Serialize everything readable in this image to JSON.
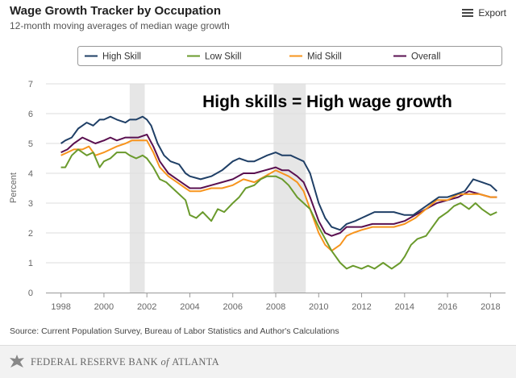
{
  "header": {
    "title": "Wage Growth Tracker by Occupation",
    "subtitle": "12-month moving averages of median wage growth",
    "export_label": "Export"
  },
  "footer": {
    "source": "Source: Current Population Survey, Bureau of Labor Statistics and Author's Calculations",
    "org_prefix": "FEDERAL RESERVE BANK",
    "org_of": " of ",
    "org_city": "ATLANTA"
  },
  "colors": {
    "high_skill": "#1f3f66",
    "low_skill": "#6a9a2c",
    "mid_skill": "#f7941d",
    "overall": "#5a1050",
    "recession": "#e6e6e6",
    "grid": "#dddddd",
    "axis": "#999999"
  },
  "chart_data": {
    "type": "line",
    "ylabel": "Percent",
    "xlabel": "",
    "xlim": [
      1997.3,
      2018.7
    ],
    "ylim": [
      0,
      7
    ],
    "x_ticks": [
      1998,
      2000,
      2002,
      2004,
      2006,
      2008,
      2010,
      2012,
      2014,
      2016,
      2018
    ],
    "y_ticks": [
      0,
      1,
      2,
      3,
      4,
      5,
      6,
      7
    ],
    "grid": "horizontal",
    "legend_position": "top",
    "annotation": "High skills = High wage growth",
    "recession_bands": [
      [
        2001.2,
        2001.9
      ],
      [
        2007.9,
        2009.4
      ]
    ],
    "series": [
      {
        "name": "High Skill",
        "color_key": "high_skill",
        "points": [
          [
            1998,
            5.0
          ],
          [
            1998.2,
            5.1
          ],
          [
            1998.5,
            5.2
          ],
          [
            1998.8,
            5.5
          ],
          [
            1999,
            5.6
          ],
          [
            1999.2,
            5.7
          ],
          [
            1999.5,
            5.6
          ],
          [
            1999.8,
            5.8
          ],
          [
            2000,
            5.8
          ],
          [
            2000.3,
            5.9
          ],
          [
            2000.6,
            5.8
          ],
          [
            2001,
            5.7
          ],
          [
            2001.2,
            5.8
          ],
          [
            2001.5,
            5.8
          ],
          [
            2001.8,
            5.9
          ],
          [
            2002,
            5.8
          ],
          [
            2002.2,
            5.6
          ],
          [
            2002.5,
            5.0
          ],
          [
            2002.8,
            4.6
          ],
          [
            2003.1,
            4.4
          ],
          [
            2003.5,
            4.3
          ],
          [
            2003.8,
            4.0
          ],
          [
            2004,
            3.9
          ],
          [
            2004.5,
            3.8
          ],
          [
            2005,
            3.9
          ],
          [
            2005.5,
            4.1
          ],
          [
            2006,
            4.4
          ],
          [
            2006.3,
            4.5
          ],
          [
            2006.7,
            4.4
          ],
          [
            2007,
            4.4
          ],
          [
            2007.3,
            4.5
          ],
          [
            2007.6,
            4.6
          ],
          [
            2008,
            4.7
          ],
          [
            2008.3,
            4.6
          ],
          [
            2008.7,
            4.6
          ],
          [
            2009,
            4.5
          ],
          [
            2009.3,
            4.4
          ],
          [
            2009.6,
            4.0
          ],
          [
            2010,
            3.0
          ],
          [
            2010.3,
            2.5
          ],
          [
            2010.6,
            2.2
          ],
          [
            2011,
            2.1
          ],
          [
            2011.3,
            2.3
          ],
          [
            2011.7,
            2.4
          ],
          [
            2012,
            2.5
          ],
          [
            2012.3,
            2.6
          ],
          [
            2012.6,
            2.7
          ],
          [
            2013,
            2.7
          ],
          [
            2013.5,
            2.7
          ],
          [
            2014,
            2.6
          ],
          [
            2014.4,
            2.6
          ],
          [
            2014.8,
            2.8
          ],
          [
            2015.2,
            3.0
          ],
          [
            2015.6,
            3.2
          ],
          [
            2016,
            3.2
          ],
          [
            2016.4,
            3.3
          ],
          [
            2016.8,
            3.4
          ],
          [
            2017.2,
            3.8
          ],
          [
            2017.6,
            3.7
          ],
          [
            2018,
            3.6
          ],
          [
            2018.3,
            3.4
          ]
        ]
      },
      {
        "name": "Low Skill",
        "color_key": "low_skill",
        "points": [
          [
            1998,
            4.2
          ],
          [
            1998.2,
            4.2
          ],
          [
            1998.5,
            4.6
          ],
          [
            1998.8,
            4.8
          ],
          [
            1999.2,
            4.6
          ],
          [
            1999.5,
            4.7
          ],
          [
            1999.8,
            4.2
          ],
          [
            2000,
            4.4
          ],
          [
            2000.3,
            4.5
          ],
          [
            2000.6,
            4.7
          ],
          [
            2001,
            4.7
          ],
          [
            2001.2,
            4.6
          ],
          [
            2001.5,
            4.5
          ],
          [
            2001.8,
            4.6
          ],
          [
            2002,
            4.5
          ],
          [
            2002.3,
            4.2
          ],
          [
            2002.6,
            3.8
          ],
          [
            2002.9,
            3.7
          ],
          [
            2003.2,
            3.5
          ],
          [
            2003.5,
            3.3
          ],
          [
            2003.8,
            3.1
          ],
          [
            2004,
            2.6
          ],
          [
            2004.3,
            2.5
          ],
          [
            2004.6,
            2.7
          ],
          [
            2005,
            2.4
          ],
          [
            2005.3,
            2.8
          ],
          [
            2005.6,
            2.7
          ],
          [
            2006,
            3.0
          ],
          [
            2006.3,
            3.2
          ],
          [
            2006.6,
            3.5
          ],
          [
            2007,
            3.6
          ],
          [
            2007.3,
            3.8
          ],
          [
            2007.6,
            3.9
          ],
          [
            2008,
            3.9
          ],
          [
            2008.3,
            3.8
          ],
          [
            2008.6,
            3.6
          ],
          [
            2009,
            3.2
          ],
          [
            2009.3,
            3.0
          ],
          [
            2009.6,
            2.8
          ],
          [
            2010,
            2.2
          ],
          [
            2010.3,
            1.8
          ],
          [
            2010.6,
            1.4
          ],
          [
            2011,
            1.0
          ],
          [
            2011.3,
            0.8
          ],
          [
            2011.6,
            0.9
          ],
          [
            2012,
            0.8
          ],
          [
            2012.3,
            0.9
          ],
          [
            2012.6,
            0.8
          ],
          [
            2013,
            1.0
          ],
          [
            2013.4,
            0.8
          ],
          [
            2013.8,
            1.0
          ],
          [
            2014,
            1.2
          ],
          [
            2014.3,
            1.6
          ],
          [
            2014.6,
            1.8
          ],
          [
            2015,
            1.9
          ],
          [
            2015.3,
            2.2
          ],
          [
            2015.6,
            2.5
          ],
          [
            2016,
            2.7
          ],
          [
            2016.3,
            2.9
          ],
          [
            2016.6,
            3.0
          ],
          [
            2017,
            2.8
          ],
          [
            2017.3,
            3.0
          ],
          [
            2017.6,
            2.8
          ],
          [
            2018,
            2.6
          ],
          [
            2018.3,
            2.7
          ]
        ]
      },
      {
        "name": "Mid Skill",
        "color_key": "mid_skill",
        "points": [
          [
            1998,
            4.6
          ],
          [
            1998.3,
            4.7
          ],
          [
            1998.6,
            4.8
          ],
          [
            1999,
            4.8
          ],
          [
            1999.3,
            4.9
          ],
          [
            1999.6,
            4.6
          ],
          [
            2000,
            4.7
          ],
          [
            2000.3,
            4.8
          ],
          [
            2000.6,
            4.9
          ],
          [
            2001,
            5.0
          ],
          [
            2001.3,
            5.1
          ],
          [
            2001.6,
            5.1
          ],
          [
            2002,
            5.1
          ],
          [
            2002.3,
            4.7
          ],
          [
            2002.6,
            4.2
          ],
          [
            2003,
            3.9
          ],
          [
            2003.4,
            3.7
          ],
          [
            2003.8,
            3.5
          ],
          [
            2004,
            3.4
          ],
          [
            2004.5,
            3.4
          ],
          [
            2005,
            3.5
          ],
          [
            2005.5,
            3.5
          ],
          [
            2006,
            3.6
          ],
          [
            2006.5,
            3.8
          ],
          [
            2007,
            3.7
          ],
          [
            2007.5,
            3.9
          ],
          [
            2008,
            4.1
          ],
          [
            2008.3,
            4.0
          ],
          [
            2008.6,
            3.9
          ],
          [
            2009,
            3.7
          ],
          [
            2009.3,
            3.4
          ],
          [
            2009.6,
            2.8
          ],
          [
            2010,
            2.0
          ],
          [
            2010.3,
            1.6
          ],
          [
            2010.6,
            1.4
          ],
          [
            2011,
            1.6
          ],
          [
            2011.3,
            1.9
          ],
          [
            2011.6,
            2.0
          ],
          [
            2012,
            2.1
          ],
          [
            2012.5,
            2.2
          ],
          [
            2013,
            2.2
          ],
          [
            2013.5,
            2.2
          ],
          [
            2014,
            2.3
          ],
          [
            2014.5,
            2.5
          ],
          [
            2015,
            2.8
          ],
          [
            2015.5,
            3.1
          ],
          [
            2016,
            3.1
          ],
          [
            2016.5,
            3.3
          ],
          [
            2017,
            3.3
          ],
          [
            2017.5,
            3.3
          ],
          [
            2018,
            3.2
          ],
          [
            2018.3,
            3.2
          ]
        ]
      },
      {
        "name": "Overall",
        "color_key": "overall",
        "points": [
          [
            1998,
            4.7
          ],
          [
            1998.3,
            4.8
          ],
          [
            1998.6,
            5.0
          ],
          [
            1999,
            5.2
          ],
          [
            1999.3,
            5.1
          ],
          [
            1999.6,
            5.0
          ],
          [
            2000,
            5.1
          ],
          [
            2000.3,
            5.2
          ],
          [
            2000.6,
            5.1
          ],
          [
            2001,
            5.2
          ],
          [
            2001.3,
            5.2
          ],
          [
            2001.6,
            5.2
          ],
          [
            2002,
            5.3
          ],
          [
            2002.3,
            4.9
          ],
          [
            2002.6,
            4.4
          ],
          [
            2003,
            4.0
          ],
          [
            2003.4,
            3.8
          ],
          [
            2003.8,
            3.6
          ],
          [
            2004,
            3.5
          ],
          [
            2004.5,
            3.5
          ],
          [
            2005,
            3.6
          ],
          [
            2005.5,
            3.7
          ],
          [
            2006,
            3.8
          ],
          [
            2006.5,
            4.0
          ],
          [
            2007,
            4.0
          ],
          [
            2007.5,
            4.1
          ],
          [
            2008,
            4.2
          ],
          [
            2008.3,
            4.1
          ],
          [
            2008.6,
            4.1
          ],
          [
            2009,
            3.9
          ],
          [
            2009.3,
            3.7
          ],
          [
            2009.6,
            3.2
          ],
          [
            2010,
            2.4
          ],
          [
            2010.3,
            2.0
          ],
          [
            2010.6,
            1.9
          ],
          [
            2011,
            2.0
          ],
          [
            2011.3,
            2.2
          ],
          [
            2011.6,
            2.2
          ],
          [
            2012,
            2.2
          ],
          [
            2012.5,
            2.3
          ],
          [
            2013,
            2.3
          ],
          [
            2013.5,
            2.3
          ],
          [
            2014,
            2.4
          ],
          [
            2014.5,
            2.6
          ],
          [
            2015,
            2.8
          ],
          [
            2015.5,
            3.0
          ],
          [
            2016,
            3.1
          ],
          [
            2016.5,
            3.2
          ],
          [
            2017,
            3.4
          ],
          [
            2017.5,
            3.3
          ],
          [
            2018,
            3.2
          ],
          [
            2018.3,
            3.2
          ]
        ]
      }
    ]
  }
}
